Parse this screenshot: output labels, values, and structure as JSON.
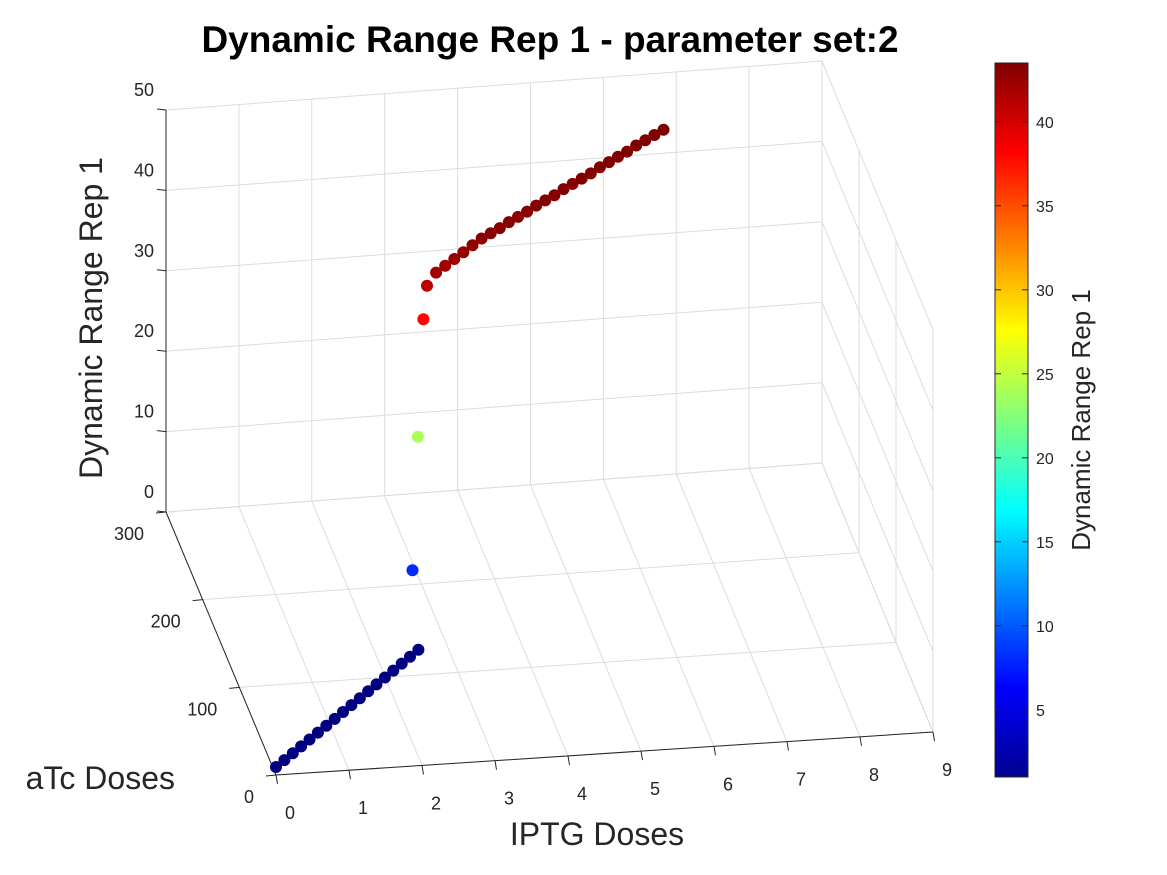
{
  "chart_data": {
    "type": "scatter3d",
    "title": "Dynamic Range Rep 1 - parameter set:2",
    "xlabel": "IPTG Doses",
    "ylabel": "aTc Doses",
    "zlabel": "Dynamic Range Rep 1",
    "colorbar_label": "Dynamic Range Rep 1",
    "colormap": "jet",
    "xlim": [
      0,
      9
    ],
    "ylim": [
      0,
      300
    ],
    "zlim": [
      0,
      50
    ],
    "clim": [
      1,
      43.5
    ],
    "x_ticks": [
      "0",
      "1",
      "2",
      "3",
      "4",
      "5",
      "6",
      "7",
      "8",
      "9"
    ],
    "y_ticks": [
      "0",
      "100",
      "200",
      "300"
    ],
    "z_ticks": [
      "0",
      "10",
      "20",
      "30",
      "40",
      "50"
    ],
    "colorbar_ticks": [
      "5",
      "10",
      "15",
      "20",
      "25",
      "30",
      "35",
      "40"
    ],
    "grid": true,
    "series": [
      {
        "low_segment": {
          "x": [
            0.0,
            0.15,
            0.3,
            0.45,
            0.6,
            0.75,
            0.9,
            1.05,
            1.2,
            1.35,
            1.5,
            1.65,
            1.8,
            1.95,
            2.1,
            2.25,
            2.4,
            2.55
          ],
          "y": [
            0,
            7,
            14,
            21,
            28,
            35,
            42,
            49,
            56,
            63,
            70,
            77,
            84,
            91,
            98,
            105,
            112,
            119
          ],
          "z": [
            1,
            1,
            1,
            1,
            1,
            1,
            1,
            1,
            1,
            1,
            1,
            1,
            1,
            1,
            1,
            1,
            1,
            1
          ]
        },
        "transition": {
          "x": [
            2.6,
            2.7,
            2.8
          ],
          "y": [
            145,
            150,
            155
          ],
          "z": [
            8,
            24,
            38
          ]
        },
        "high_segment": {
          "x": [
            2.9,
            3.05,
            3.2,
            3.35,
            3.5,
            3.65,
            3.8,
            3.95,
            4.1,
            4.25,
            4.4,
            4.55,
            4.7,
            4.85,
            5.0,
            5.15,
            5.3,
            5.45,
            5.6,
            5.75,
            5.9,
            6.05,
            6.2,
            6.35,
            6.5,
            6.65,
            6.8
          ],
          "y": [
            165,
            170,
            175,
            180,
            185,
            190,
            195,
            200,
            205,
            210,
            215,
            220,
            225,
            230,
            235,
            240,
            245,
            250,
            255,
            260,
            265,
            270,
            275,
            280,
            285,
            290,
            295
          ],
          "z": [
            41,
            42,
            42.2,
            42.4,
            42.6,
            42.8,
            43,
            43,
            43,
            43.1,
            43.1,
            43.1,
            43.2,
            43.2,
            43.2,
            43.3,
            43.3,
            43.3,
            43.3,
            43.4,
            43.4,
            43.4,
            43.4,
            43.5,
            43.5,
            43.5,
            43.5
          ]
        }
      }
    ]
  }
}
